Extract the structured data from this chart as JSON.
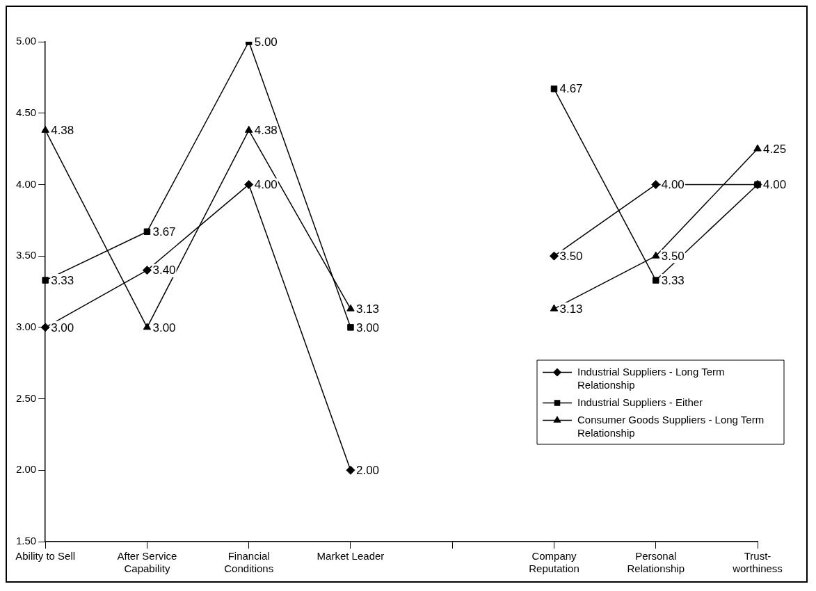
{
  "chart_data": {
    "type": "line",
    "categories": [
      "Ability to Sell",
      "After Service Capability",
      "Financial Conditions",
      "Market Leader",
      null,
      "Company Reputation",
      "Personal Relationship",
      "Trust-worthiness"
    ],
    "ylim": [
      1.5,
      5.0
    ],
    "yticks": [
      {
        "value": 1.5,
        "label": "1.50"
      },
      {
        "value": 2.0,
        "label": "2.00"
      },
      {
        "value": 2.5,
        "label": "2.50"
      },
      {
        "value": 3.0,
        "label": "3.00"
      },
      {
        "value": 3.5,
        "label": "3.50"
      },
      {
        "value": 4.0,
        "label": "4.00"
      },
      {
        "value": 4.5,
        "label": "4.50"
      },
      {
        "value": 5.0,
        "label": "5.00"
      }
    ],
    "grid": false,
    "legend": "bottom right",
    "line_style": "solid",
    "series": [
      {
        "name": "Industrial Suppliers - Long Term Relationship",
        "color": "#000000",
        "marker": "diamond",
        "values": [
          3.0,
          3.4,
          4.0,
          2.0,
          null,
          3.5,
          4.0,
          4.0
        ],
        "value_labels": [
          "3.00",
          "3.40",
          "4.00",
          "2.00",
          null,
          "3.50",
          "4.00",
          null
        ]
      },
      {
        "name": "Industrial Suppliers - Either",
        "color": "#000000",
        "marker": "square",
        "values": [
          3.33,
          3.67,
          5.0,
          3.0,
          null,
          4.67,
          3.33,
          4.0
        ],
        "value_labels": [
          "3.33",
          "3.67",
          "5.00",
          "3.00",
          null,
          "4.67",
          "3.33",
          "4.00"
        ]
      },
      {
        "name": "Consumer Goods Suppliers - Long Term Relationship",
        "color": "#000000",
        "marker": "triangle",
        "values": [
          4.38,
          3.0,
          4.38,
          3.13,
          null,
          3.13,
          3.5,
          4.25
        ],
        "value_labels": [
          "4.38",
          "3.00",
          "4.38",
          "3.13",
          null,
          "3.13",
          "3.50",
          "4.25"
        ]
      }
    ]
  }
}
